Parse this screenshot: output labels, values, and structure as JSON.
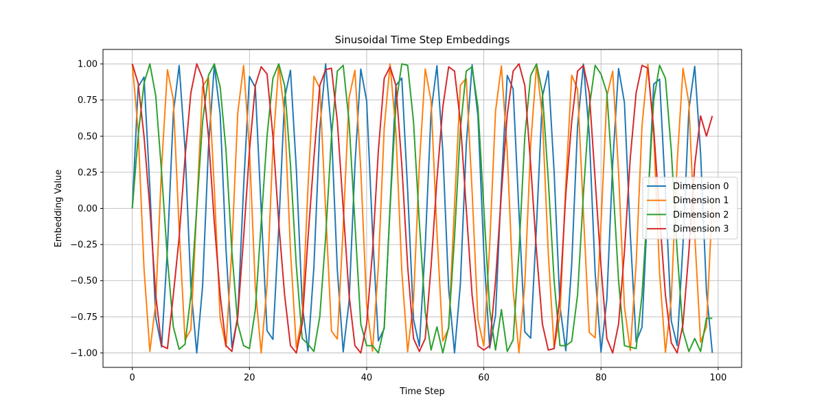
{
  "chart_data": {
    "type": "line",
    "title": "Sinusoidal Time Step Embeddings",
    "xlabel": "Time Step",
    "ylabel": "Embedding Value",
    "xlim": [
      -5.0,
      104.0
    ],
    "ylim": [
      -1.1,
      1.1
    ],
    "xticks": [
      0,
      20,
      40,
      60,
      80,
      100
    ],
    "xtick_labels": [
      "0",
      "20",
      "40",
      "60",
      "80",
      "100"
    ],
    "yticks": [
      1.0,
      0.75,
      0.5,
      0.25,
      0.0,
      -0.25,
      -0.5,
      -0.75,
      -1.0
    ],
    "ytick_labels": [
      "1.00",
      "0.75",
      "0.50",
      "0.25",
      "0.00",
      "−0.25",
      "−0.50",
      "−0.75",
      "−1.00"
    ],
    "grid": true,
    "legend_position": "center-right",
    "x_start": 0,
    "x_end": 99,
    "series": [
      {
        "name": "Dimension 0",
        "color": "#1f77b4",
        "values": [
          0.0,
          0.841,
          0.909,
          0.141,
          -0.757,
          -0.959,
          -0.279,
          0.657,
          0.989,
          0.412,
          -0.544,
          -1.0,
          -0.537,
          0.42,
          0.991,
          0.65,
          -0.288,
          -0.961,
          -0.751,
          0.15,
          0.913,
          0.837,
          -0.009,
          -0.846,
          -0.906,
          -0.132,
          0.763,
          0.956,
          0.271,
          -0.664,
          -0.988,
          -0.404,
          0.551,
          1.0,
          0.529,
          -0.428,
          -0.992,
          -0.644,
          0.296,
          0.964,
          0.745,
          -0.159,
          -0.917,
          -0.832,
          0.018,
          0.851,
          0.902,
          0.124,
          -0.768,
          -0.954,
          -0.262,
          0.67,
          0.987,
          0.396,
          -0.559,
          -1.0,
          -0.522,
          0.436,
          0.993,
          0.637,
          -0.305,
          -0.966,
          -0.739,
          0.167,
          0.92,
          0.827,
          -0.027,
          -0.855,
          -0.898,
          -0.115,
          0.774,
          0.951,
          0.254,
          -0.677,
          -0.985,
          -0.388,
          0.566,
          0.999,
          0.514,
          -0.444,
          -0.994,
          -0.63,
          0.313,
          0.968,
          0.733,
          -0.176,
          -0.923,
          -0.822,
          0.035,
          0.86,
          0.894,
          0.106,
          -0.779,
          -0.948,
          -0.245,
          0.683,
          0.983,
          0.38,
          -0.573,
          -0.999
        ]
      },
      {
        "name": "Dimension 1",
        "color": "#ff7f0e",
        "values": [
          1.0,
          0.54,
          -0.416,
          -0.99,
          -0.654,
          0.284,
          0.96,
          0.754,
          -0.146,
          -0.911,
          -0.839,
          0.004,
          0.844,
          0.907,
          0.137,
          -0.76,
          -0.958,
          -0.275,
          0.66,
          0.989,
          0.408,
          -0.548,
          -1.0,
          -0.533,
          0.424,
          0.991,
          0.647,
          -0.292,
          -0.963,
          -0.748,
          0.154,
          0.914,
          0.834,
          -0.013,
          -0.849,
          -0.904,
          -0.128,
          0.765,
          0.955,
          0.267,
          -0.667,
          -0.987,
          -0.4,
          0.555,
          1.0,
          0.525,
          -0.432,
          -0.992,
          -0.64,
          0.3,
          0.965,
          0.742,
          -0.163,
          -0.918,
          -0.83,
          0.022,
          0.853,
          0.9,
          0.119,
          -0.771,
          -0.952,
          -0.258,
          0.673,
          0.986,
          0.392,
          -0.562,
          -1.0,
          -0.518,
          0.44,
          0.993,
          0.633,
          -0.309,
          -0.967,
          -0.736,
          0.172,
          0.922,
          0.825,
          -0.031,
          -0.858,
          -0.896,
          -0.11,
          0.776,
          0.949,
          0.249,
          -0.68,
          -0.984,
          -0.384,
          0.57,
          0.999,
          0.51,
          -0.448,
          -0.995,
          -0.626,
          0.318,
          0.969,
          0.73,
          -0.18,
          -0.925,
          -0.82,
          0.039
        ]
      },
      {
        "name": "Dimension 2",
        "color": "#2ca02c",
        "values": [
          0.0,
          0.5,
          0.866,
          1.0,
          0.78,
          0.25,
          -0.35,
          -0.82,
          -0.975,
          -0.94,
          -0.6,
          0.0,
          0.6,
          0.92,
          1.0,
          0.84,
          0.4,
          -0.3,
          -0.8,
          -0.95,
          -0.97,
          -0.7,
          -0.1,
          0.5,
          0.9,
          1.0,
          0.85,
          0.3,
          -0.4,
          -0.9,
          -0.94,
          -0.99,
          -0.75,
          -0.2,
          0.5,
          0.95,
          0.99,
          0.6,
          -0.1,
          -0.8,
          -0.95,
          -0.95,
          -1.0,
          -0.82,
          0.0,
          0.72,
          1.0,
          0.99,
          0.6,
          -0.1,
          -0.72,
          -0.98,
          -0.82,
          -1.0,
          -0.82,
          -0.2,
          0.55,
          0.95,
          0.98,
          0.7,
          0.0,
          -0.7,
          -0.98,
          -0.7,
          -0.99,
          -0.91,
          -0.3,
          0.5,
          0.92,
          1.0,
          0.8,
          0.2,
          -0.5,
          -0.95,
          -0.95,
          -0.92,
          -0.6,
          0.1,
          0.7,
          0.99,
          0.93,
          0.8,
          0.2,
          -0.5,
          -0.95,
          -0.96,
          -0.97,
          -0.6,
          0.05,
          0.75,
          0.99,
          0.9,
          0.4,
          -0.3,
          -0.85,
          -0.99,
          -0.9,
          -0.99,
          -0.76,
          -0.76
        ]
      },
      {
        "name": "Dimension 3",
        "color": "#d62728",
        "values": [
          1.0,
          0.866,
          0.5,
          0.0,
          -0.6,
          -0.95,
          -0.97,
          -0.6,
          -0.2,
          0.35,
          0.8,
          1.0,
          0.9,
          0.5,
          -0.1,
          -0.6,
          -0.95,
          -0.99,
          -0.75,
          -0.2,
          0.4,
          0.85,
          0.98,
          0.93,
          0.5,
          -0.1,
          -0.6,
          -0.95,
          -1.0,
          -0.8,
          -0.2,
          0.35,
          0.85,
          0.96,
          0.97,
          0.6,
          0.0,
          -0.6,
          -0.95,
          -1.0,
          -0.8,
          -0.3,
          0.4,
          0.9,
          0.98,
          0.85,
          0.3,
          -0.4,
          -0.9,
          -0.99,
          -0.9,
          -0.4,
          0.2,
          0.7,
          0.98,
          0.95,
          0.6,
          0.0,
          -0.6,
          -0.95,
          -0.98,
          -0.95,
          -0.5,
          0.1,
          0.65,
          0.95,
          1.0,
          0.85,
          0.3,
          -0.3,
          -0.8,
          -0.98,
          -0.97,
          -0.6,
          0.1,
          0.6,
          0.95,
          0.99,
          0.8,
          0.2,
          -0.4,
          -0.9,
          -1.0,
          -0.8,
          -0.3,
          0.35,
          0.8,
          0.99,
          0.97,
          0.55,
          -0.05,
          -0.6,
          -0.93,
          -1.0,
          -0.8,
          -0.3,
          0.3,
          0.64,
          0.5,
          0.64
        ]
      }
    ]
  }
}
